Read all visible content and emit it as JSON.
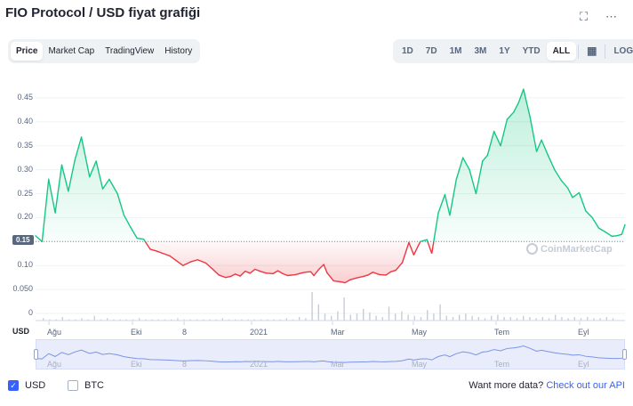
{
  "header": {
    "title": "FIO Protocol / USD fiyat grafiği"
  },
  "view_tabs": [
    "Price",
    "Market Cap",
    "TradingView",
    "History"
  ],
  "view_active": "Price",
  "range_tabs": [
    "1D",
    "7D",
    "1M",
    "3M",
    "1Y",
    "YTD",
    "ALL"
  ],
  "range_active": "ALL",
  "log_label": "LOG",
  "chart": {
    "current_price_label": "0.15",
    "watermark": "CoinMarketCap",
    "axis_currency": "USD",
    "colors": {
      "up": "#16c784",
      "down": "#ea3943",
      "volume": "#c7cdd6",
      "navigator": "#7b93e8"
    }
  },
  "chart_data": {
    "type": "line",
    "y_ticks": [
      "0",
      "0.050",
      "0.10",
      "0.15",
      "0.20",
      "0.25",
      "0.30",
      "0.35",
      "0.40",
      "0.45"
    ],
    "x_ticks": [
      "Ağu",
      "Eki",
      "8",
      "2021",
      "Mar",
      "May",
      "Tem",
      "Eyl"
    ],
    "ylim": [
      0,
      0.48
    ],
    "baseline": 0.15,
    "x": [
      0,
      8,
      16,
      24,
      32,
      40,
      48,
      56,
      66,
      74,
      82,
      90,
      100,
      108,
      116,
      124,
      132,
      140,
      148,
      156,
      164,
      172,
      180,
      190,
      198,
      208,
      216,
      224,
      232,
      238,
      244,
      250,
      256,
      262,
      268,
      276,
      282,
      290,
      296,
      302,
      308,
      318,
      324,
      330,
      336,
      340,
      346,
      352,
      356,
      364,
      372,
      378,
      384,
      392,
      400,
      406,
      412,
      420,
      428,
      434,
      440,
      448,
      456,
      462,
      470,
      478,
      484,
      492,
      500,
      506,
      514,
      522,
      530,
      538,
      546,
      552,
      560,
      568,
      576,
      584,
      590,
      596,
      604,
      612,
      618,
      626,
      634,
      642,
      650,
      656,
      664,
      672,
      680,
      688,
      696,
      704,
      710,
      716,
      720
    ],
    "series": [
      {
        "name": "USD",
        "values": [
          0.162,
          0.15,
          0.28,
          0.21,
          0.31,
          0.255,
          0.32,
          0.368,
          0.285,
          0.318,
          0.26,
          0.28,
          0.25,
          0.205,
          0.18,
          0.157,
          0.155,
          0.134,
          0.13,
          0.125,
          0.12,
          0.11,
          0.1,
          0.108,
          0.112,
          0.105,
          0.093,
          0.08,
          0.075,
          0.077,
          0.082,
          0.078,
          0.088,
          0.084,
          0.092,
          0.087,
          0.084,
          0.083,
          0.089,
          0.083,
          0.079,
          0.081,
          0.084,
          0.086,
          0.087,
          0.079,
          0.092,
          0.102,
          0.085,
          0.068,
          0.066,
          0.064,
          0.07,
          0.074,
          0.077,
          0.08,
          0.086,
          0.081,
          0.08,
          0.087,
          0.09,
          0.106,
          0.148,
          0.122,
          0.15,
          0.154,
          0.125,
          0.21,
          0.248,
          0.205,
          0.28,
          0.325,
          0.3,
          0.25,
          0.318,
          0.33,
          0.38,
          0.35,
          0.405,
          0.42,
          0.44,
          0.468,
          0.41,
          0.338,
          0.362,
          0.33,
          0.3,
          0.278,
          0.262,
          0.242,
          0.252,
          0.214,
          0.2,
          0.178,
          0.17,
          0.161,
          0.162,
          0.165,
          0.185
        ]
      }
    ],
    "navigator": {
      "labels": [
        "Ağu",
        "Eki",
        "8",
        "2021",
        "Mar",
        "May",
        "Tem",
        "Eyl"
      ]
    }
  },
  "legend": {
    "usd": "USD",
    "btc": "BTC",
    "usd_checked": true,
    "btc_checked": false
  },
  "footer": {
    "text": "Want more data?",
    "link": "Check out our API"
  }
}
